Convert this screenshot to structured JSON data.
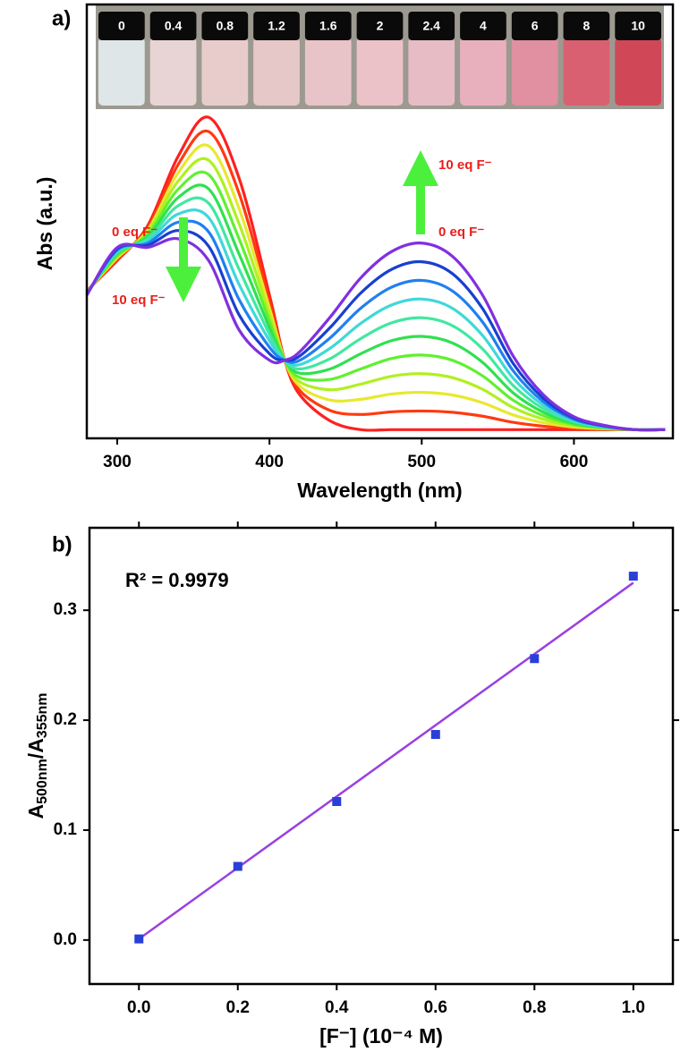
{
  "chart_data": [
    {
      "type": "line",
      "panel": "a)",
      "xlabel": "Wavelength (nm)",
      "ylabel": "Abs (a.u.)",
      "photo_labels": [
        "0",
        "0.4",
        "0.8",
        "1.2",
        "1.6",
        "2",
        "2.4",
        "4",
        "6",
        "8",
        "10"
      ],
      "annotations": [
        {
          "text": "0 eq F⁻",
          "color": "#e8201c"
        },
        {
          "text": "10 eq F⁻",
          "color": "#e8201c"
        },
        {
          "text": "10 eq F⁻",
          "color": "#e8201c"
        },
        {
          "text": "0 eq F⁻",
          "color": "#e8201c"
        }
      ],
      "xlim": [
        280,
        665
      ],
      "ylim": [
        0,
        1
      ],
      "xticks": [
        300,
        400,
        500,
        600
      ],
      "x": [
        280,
        300,
        320,
        340,
        360,
        380,
        400,
        410,
        420,
        440,
        460,
        480,
        500,
        520,
        540,
        560,
        580,
        600,
        620,
        640,
        660
      ],
      "series": [
        {
          "color": "#ff2020",
          "values": [
            0.34,
            0.41,
            0.49,
            0.65,
            0.74,
            0.6,
            0.33,
            0.18,
            0.1,
            0.04,
            0.02,
            0.02,
            0.02,
            0.02,
            0.02,
            0.02,
            0.02,
            0.02,
            0.02,
            0.02,
            0.02
          ]
        },
        {
          "color": "#ff3a10",
          "values": [
            0.339,
            0.413,
            0.485,
            0.631,
            0.707,
            0.565,
            0.315,
            0.18,
            0.11,
            0.064,
            0.055,
            0.061,
            0.063,
            0.06,
            0.051,
            0.037,
            0.028,
            0.023,
            0.021,
            0.02,
            0.02
          ]
        },
        {
          "color": "#e8e830",
          "values": [
            0.338,
            0.416,
            0.48,
            0.612,
            0.674,
            0.53,
            0.3,
            0.18,
            0.12,
            0.088,
            0.09,
            0.102,
            0.106,
            0.1,
            0.082,
            0.054,
            0.036,
            0.026,
            0.022,
            0.02,
            0.02
          ]
        },
        {
          "color": "#b0f020",
          "values": [
            0.337,
            0.419,
            0.475,
            0.593,
            0.641,
            0.495,
            0.285,
            0.18,
            0.13,
            0.112,
            0.125,
            0.143,
            0.149,
            0.14,
            0.113,
            0.071,
            0.044,
            0.029,
            0.023,
            0.02,
            0.02
          ]
        },
        {
          "color": "#60f030",
          "values": [
            0.336,
            0.422,
            0.47,
            0.574,
            0.608,
            0.46,
            0.27,
            0.18,
            0.14,
            0.136,
            0.16,
            0.184,
            0.192,
            0.18,
            0.144,
            0.088,
            0.052,
            0.032,
            0.024,
            0.02,
            0.02
          ]
        },
        {
          "color": "#30e050",
          "values": [
            0.335,
            0.425,
            0.465,
            0.555,
            0.575,
            0.425,
            0.255,
            0.18,
            0.15,
            0.16,
            0.195,
            0.225,
            0.235,
            0.22,
            0.175,
            0.105,
            0.06,
            0.035,
            0.025,
            0.02,
            0.02
          ]
        },
        {
          "color": "#40e8a0",
          "values": [
            0.334,
            0.428,
            0.46,
            0.536,
            0.542,
            0.39,
            0.24,
            0.18,
            0.16,
            0.184,
            0.23,
            0.266,
            0.278,
            0.26,
            0.206,
            0.122,
            0.068,
            0.038,
            0.026,
            0.02,
            0.02
          ]
        },
        {
          "color": "#40d8d8",
          "values": [
            0.333,
            0.431,
            0.455,
            0.517,
            0.509,
            0.355,
            0.225,
            0.18,
            0.17,
            0.208,
            0.265,
            0.307,
            0.321,
            0.3,
            0.237,
            0.139,
            0.076,
            0.041,
            0.027,
            0.02,
            0.02
          ]
        },
        {
          "color": "#2080f0",
          "values": [
            0.332,
            0.434,
            0.45,
            0.498,
            0.476,
            0.32,
            0.21,
            0.18,
            0.18,
            0.232,
            0.3,
            0.348,
            0.364,
            0.34,
            0.268,
            0.156,
            0.084,
            0.044,
            0.028,
            0.02,
            0.02
          ]
        },
        {
          "color": "#1840d0",
          "values": [
            0.331,
            0.437,
            0.445,
            0.479,
            0.443,
            0.285,
            0.195,
            0.18,
            0.19,
            0.256,
            0.335,
            0.389,
            0.407,
            0.38,
            0.299,
            0.173,
            0.092,
            0.047,
            0.029,
            0.02,
            0.02
          ]
        },
        {
          "color": "#8030e0",
          "values": [
            0.33,
            0.44,
            0.44,
            0.46,
            0.41,
            0.25,
            0.18,
            0.18,
            0.2,
            0.28,
            0.37,
            0.43,
            0.45,
            0.42,
            0.33,
            0.19,
            0.1,
            0.05,
            0.03,
            0.02,
            0.02
          ]
        }
      ]
    },
    {
      "type": "scatter",
      "panel": "b)",
      "xlabel": "[F⁻] (10⁻⁴ M)",
      "ylabel_parts": [
        {
          "text": "A"
        },
        {
          "text": "500nm",
          "sub": true
        },
        {
          "text": "/A"
        },
        {
          "text": "355nm",
          "sub": true
        }
      ],
      "annotation": "R² = 0.9979",
      "xlim": [
        -0.1,
        1.08
      ],
      "ylim": [
        -0.04,
        0.375
      ],
      "xticks": [
        {
          "value": 0,
          "label": "0.0"
        },
        0.2,
        0.4,
        0.6,
        0.8,
        {
          "value": 1,
          "label": "1.0"
        }
      ],
      "yticks": [
        {
          "value": 0,
          "label": "0.0"
        },
        0.1,
        0.2,
        0.3
      ],
      "x": [
        0,
        0.2,
        0.4,
        0.6,
        0.8,
        1.0
      ],
      "series": [
        {
          "color": "#2a3fd8",
          "values": [
            0.001,
            0.067,
            0.126,
            0.187,
            0.256,
            0.331
          ]
        }
      ],
      "fit": {
        "color": "#9a40e0",
        "x": [
          0,
          1
        ],
        "values": [
          0.001,
          0.325
        ]
      }
    }
  ]
}
